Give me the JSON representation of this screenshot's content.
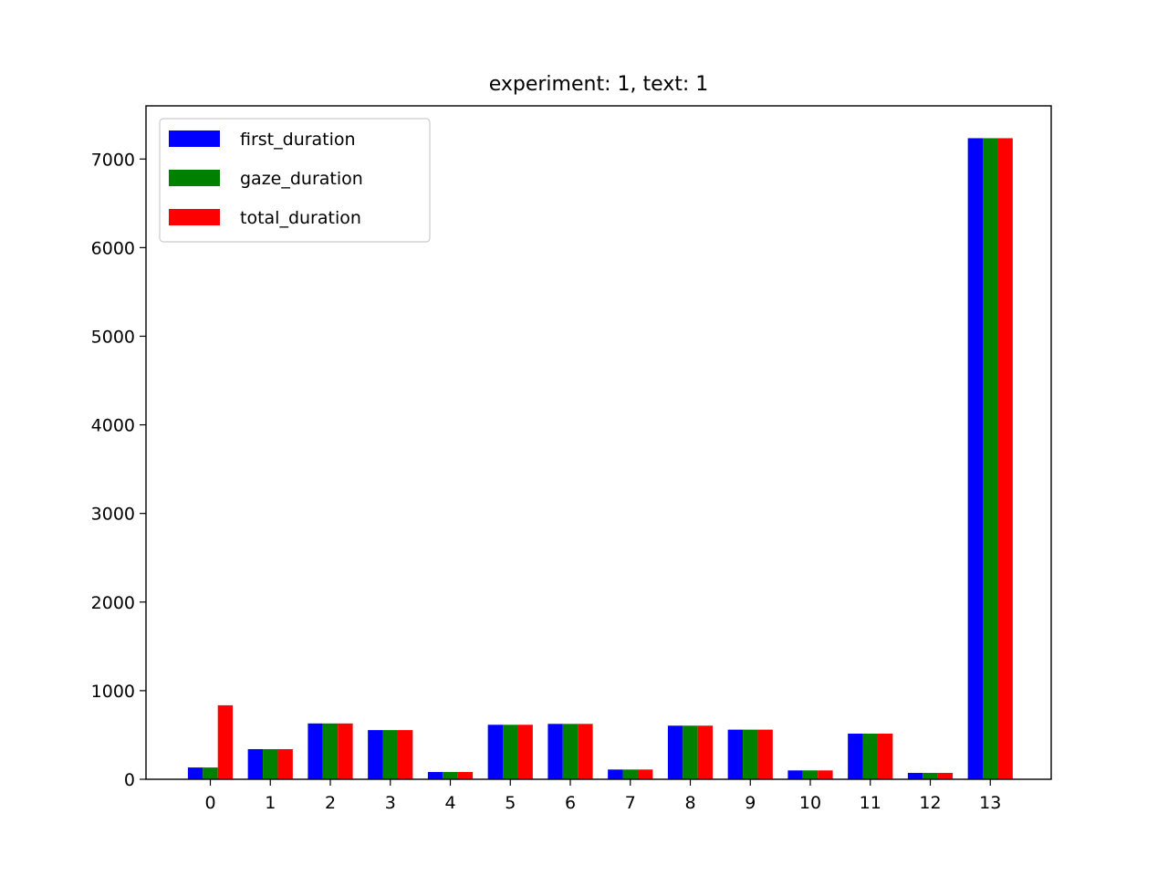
{
  "chart_data": {
    "type": "bar",
    "title": "experiment: 1, text: 1",
    "xlabel": "",
    "ylabel": "",
    "categories": [
      "0",
      "1",
      "2",
      "3",
      "4",
      "5",
      "6",
      "7",
      "8",
      "9",
      "10",
      "11",
      "12",
      "13"
    ],
    "ylim": [
      0,
      7600
    ],
    "yticks": [
      0,
      1000,
      2000,
      3000,
      4000,
      5000,
      6000,
      7000
    ],
    "grid": false,
    "legend_position": "top-left",
    "series": [
      {
        "name": "first_duration",
        "color": "#0000ff",
        "values": [
          133,
          340,
          630,
          555,
          82,
          615,
          625,
          110,
          605,
          560,
          100,
          515,
          72,
          7235
        ]
      },
      {
        "name": "gaze_duration",
        "color": "#008000",
        "values": [
          133,
          340,
          630,
          555,
          82,
          615,
          625,
          110,
          605,
          560,
          100,
          515,
          72,
          7235
        ]
      },
      {
        "name": "total_duration",
        "color": "#ff0000",
        "values": [
          835,
          340,
          630,
          555,
          82,
          615,
          625,
          110,
          605,
          560,
          100,
          515,
          72,
          7235
        ]
      }
    ]
  }
}
